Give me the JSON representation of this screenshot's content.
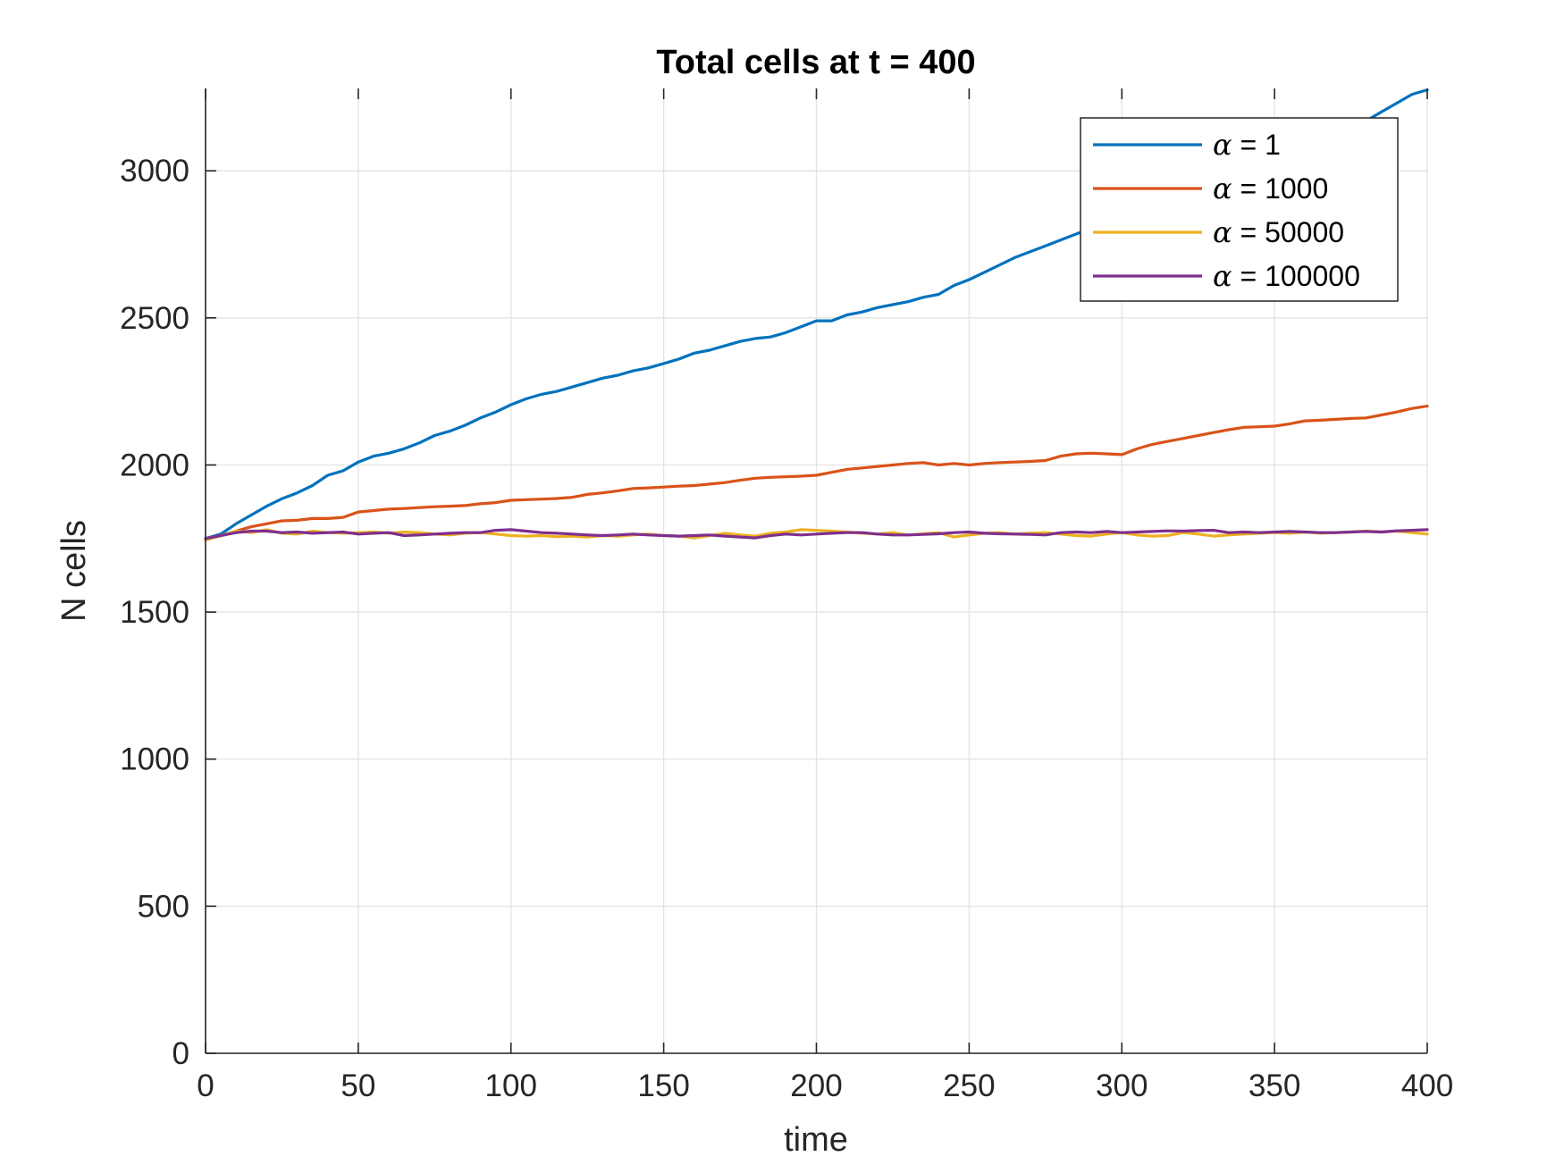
{
  "chart_data": {
    "type": "line",
    "title": "Total cells at t = 400",
    "xlabel": "time",
    "ylabel": "N cells",
    "xlim": [
      0,
      400
    ],
    "ylim": [
      0,
      3280
    ],
    "xticks": [
      0,
      50,
      100,
      150,
      200,
      250,
      300,
      350,
      400
    ],
    "yticks": [
      0,
      500,
      1000,
      1500,
      2000,
      2500,
      3000
    ],
    "grid": true,
    "legend_position": "top-right",
    "series": [
      {
        "name": "α = 1",
        "legend_symbol": "α",
        "legend_rest": " = 1",
        "color": "#0072BD",
        "x": [
          0,
          5,
          10,
          15,
          20,
          25,
          30,
          35,
          40,
          45,
          50,
          55,
          60,
          65,
          70,
          75,
          80,
          85,
          90,
          95,
          100,
          105,
          110,
          115,
          120,
          125,
          130,
          135,
          140,
          145,
          150,
          155,
          160,
          165,
          170,
          175,
          180,
          185,
          190,
          195,
          200,
          205,
          210,
          215,
          220,
          225,
          230,
          235,
          240,
          245,
          250,
          255,
          260,
          265,
          270,
          275,
          280,
          285,
          290,
          295,
          300,
          305,
          310,
          315,
          320,
          325,
          330,
          335,
          340,
          345,
          350,
          355,
          360,
          365,
          370,
          375,
          380,
          385,
          390,
          395,
          400
        ],
        "y": [
          1750,
          1765,
          1800,
          1830,
          1860,
          1885,
          1905,
          1930,
          1965,
          1980,
          2010,
          2030,
          2040,
          2055,
          2075,
          2100,
          2115,
          2135,
          2160,
          2180,
          2205,
          2225,
          2240,
          2250,
          2265,
          2280,
          2295,
          2305,
          2320,
          2330,
          2345,
          2360,
          2380,
          2390,
          2405,
          2420,
          2430,
          2435,
          2450,
          2470,
          2490,
          2490,
          2510,
          2520,
          2535,
          2545,
          2555,
          2570,
          2580,
          2610,
          2630,
          2655,
          2680,
          2705,
          2725,
          2745,
          2765,
          2785,
          2805,
          2830,
          2850,
          2870,
          2890,
          2910,
          2935,
          2955,
          2975,
          2995,
          3010,
          3030,
          3045,
          3065,
          3080,
          3100,
          3120,
          3145,
          3170,
          3200,
          3230,
          3260,
          3275
        ]
      },
      {
        "name": "α = 1000",
        "legend_symbol": "α",
        "legend_rest": " = 1000",
        "color": "#D95319",
        "x": [
          0,
          5,
          10,
          15,
          20,
          25,
          30,
          35,
          40,
          45,
          50,
          55,
          60,
          65,
          70,
          75,
          80,
          85,
          90,
          95,
          100,
          105,
          110,
          115,
          120,
          125,
          130,
          135,
          140,
          145,
          150,
          155,
          160,
          165,
          170,
          175,
          180,
          185,
          190,
          195,
          200,
          205,
          210,
          215,
          220,
          225,
          230,
          235,
          240,
          245,
          250,
          255,
          260,
          265,
          270,
          275,
          280,
          285,
          290,
          295,
          300,
          305,
          310,
          315,
          320,
          325,
          330,
          335,
          340,
          345,
          350,
          355,
          360,
          365,
          370,
          375,
          380,
          385,
          390,
          395,
          400
        ],
        "y": [
          1750,
          1760,
          1775,
          1790,
          1800,
          1810,
          1812,
          1818,
          1818,
          1822,
          1840,
          1845,
          1850,
          1852,
          1855,
          1858,
          1860,
          1862,
          1868,
          1872,
          1880,
          1882,
          1884,
          1886,
          1890,
          1900,
          1905,
          1912,
          1920,
          1922,
          1925,
          1928,
          1930,
          1935,
          1940,
          1948,
          1955,
          1958,
          1960,
          1962,
          1965,
          1975,
          1985,
          1990,
          1995,
          2000,
          2005,
          2008,
          2000,
          2005,
          2000,
          2005,
          2008,
          2010,
          2012,
          2015,
          2030,
          2038,
          2040,
          2038,
          2035,
          2055,
          2070,
          2080,
          2090,
          2100,
          2110,
          2120,
          2128,
          2130,
          2132,
          2140,
          2150,
          2152,
          2155,
          2158,
          2160,
          2170,
          2180,
          2192,
          2200
        ]
      },
      {
        "name": "α = 50000",
        "legend_symbol": "α",
        "legend_rest": " = 50000",
        "color": "#EDB120",
        "x": [
          0,
          5,
          10,
          15,
          20,
          25,
          30,
          35,
          40,
          45,
          50,
          55,
          60,
          65,
          70,
          75,
          80,
          85,
          90,
          95,
          100,
          105,
          110,
          115,
          120,
          125,
          130,
          135,
          140,
          145,
          150,
          155,
          160,
          165,
          170,
          175,
          180,
          185,
          190,
          195,
          200,
          205,
          210,
          215,
          220,
          225,
          230,
          235,
          240,
          245,
          250,
          255,
          260,
          265,
          270,
          275,
          280,
          285,
          290,
          295,
          300,
          305,
          310,
          315,
          320,
          325,
          330,
          335,
          340,
          345,
          350,
          355,
          360,
          365,
          370,
          375,
          380,
          385,
          390,
          395,
          400
        ],
        "y": [
          1745,
          1760,
          1775,
          1770,
          1780,
          1768,
          1765,
          1775,
          1770,
          1768,
          1770,
          1772,
          1768,
          1772,
          1770,
          1765,
          1762,
          1768,
          1770,
          1765,
          1760,
          1758,
          1760,
          1756,
          1758,
          1755,
          1760,
          1758,
          1762,
          1765,
          1760,
          1758,
          1752,
          1760,
          1768,
          1762,
          1758,
          1768,
          1772,
          1780,
          1778,
          1775,
          1772,
          1768,
          1765,
          1770,
          1762,
          1766,
          1770,
          1755,
          1762,
          1768,
          1770,
          1765,
          1768,
          1770,
          1765,
          1760,
          1758,
          1765,
          1770,
          1762,
          1758,
          1760,
          1770,
          1765,
          1758,
          1762,
          1765,
          1768,
          1770,
          1768,
          1772,
          1768,
          1770,
          1772,
          1775,
          1772,
          1775,
          1770,
          1765
        ]
      },
      {
        "name": "α = 100000",
        "legend_symbol": "α",
        "legend_rest": " = 100000",
        "color": "#7E2F8E",
        "x": [
          0,
          5,
          10,
          15,
          20,
          25,
          30,
          35,
          40,
          45,
          50,
          55,
          60,
          65,
          70,
          75,
          80,
          85,
          90,
          95,
          100,
          105,
          110,
          115,
          120,
          125,
          130,
          135,
          140,
          145,
          150,
          155,
          160,
          165,
          170,
          175,
          180,
          185,
          190,
          195,
          200,
          205,
          210,
          215,
          220,
          225,
          230,
          235,
          240,
          245,
          250,
          255,
          260,
          265,
          270,
          275,
          280,
          285,
          290,
          295,
          300,
          305,
          310,
          315,
          320,
          325,
          330,
          335,
          340,
          345,
          350,
          355,
          360,
          365,
          370,
          375,
          380,
          385,
          390,
          395,
          400
        ],
        "y": [
          1750,
          1760,
          1770,
          1775,
          1775,
          1770,
          1772,
          1768,
          1770,
          1772,
          1765,
          1768,
          1770,
          1760,
          1762,
          1765,
          1768,
          1770,
          1770,
          1778,
          1780,
          1775,
          1770,
          1768,
          1765,
          1762,
          1760,
          1762,
          1765,
          1762,
          1760,
          1758,
          1760,
          1762,
          1758,
          1755,
          1752,
          1760,
          1765,
          1762,
          1765,
          1768,
          1770,
          1770,
          1765,
          1762,
          1762,
          1764,
          1766,
          1770,
          1772,
          1768,
          1766,
          1765,
          1764,
          1762,
          1770,
          1772,
          1770,
          1774,
          1770,
          1772,
          1774,
          1776,
          1775,
          1777,
          1778,
          1770,
          1772,
          1770,
          1772,
          1774,
          1772,
          1770,
          1770,
          1772,
          1774,
          1772,
          1776,
          1778,
          1780
        ]
      }
    ]
  }
}
